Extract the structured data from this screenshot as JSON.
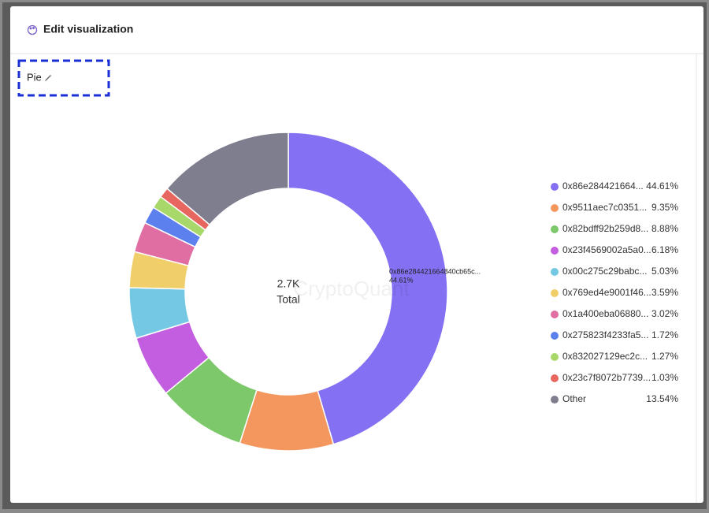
{
  "header": {
    "title": "Edit visualization"
  },
  "tab_label": "Pie",
  "chart_data": {
    "type": "pie",
    "donut": true,
    "center": {
      "value": "2.7K",
      "label": "Total"
    },
    "watermark": "CryptoQuant",
    "slice_label": "0x86e284421664840cb65c...",
    "categories": [
      "0x86e284421664...",
      "0x9511aec7c0351...",
      "0x82bdff92b259d8...",
      "0x23f4569002a5a0...",
      "0x00c275c29babc...",
      "0x769ed4e9001f46...",
      "0x1a400eba06880...",
      "0x275823f4233fa5...",
      "0x832027129ec2c...",
      "0x23c7f8072b7739...",
      "Other"
    ],
    "values": [
      44.61,
      9.35,
      8.88,
      6.18,
      5.03,
      3.59,
      3.02,
      1.72,
      1.27,
      1.03,
      13.54
    ],
    "value_labels": [
      "44.61%",
      "9.35%",
      "8.88%",
      "6.18%",
      "5.03%",
      "3.59%",
      "3.02%",
      "1.72%",
      "1.27%",
      "1.03%",
      "13.54%"
    ],
    "colors": [
      "#8470f2",
      "#f4975e",
      "#7dc86a",
      "#c35ee0",
      "#74c8e3",
      "#f0cf6a",
      "#e06ea3",
      "#5c80ee",
      "#a9d86a",
      "#e86660",
      "#7f7e8e"
    ]
  }
}
